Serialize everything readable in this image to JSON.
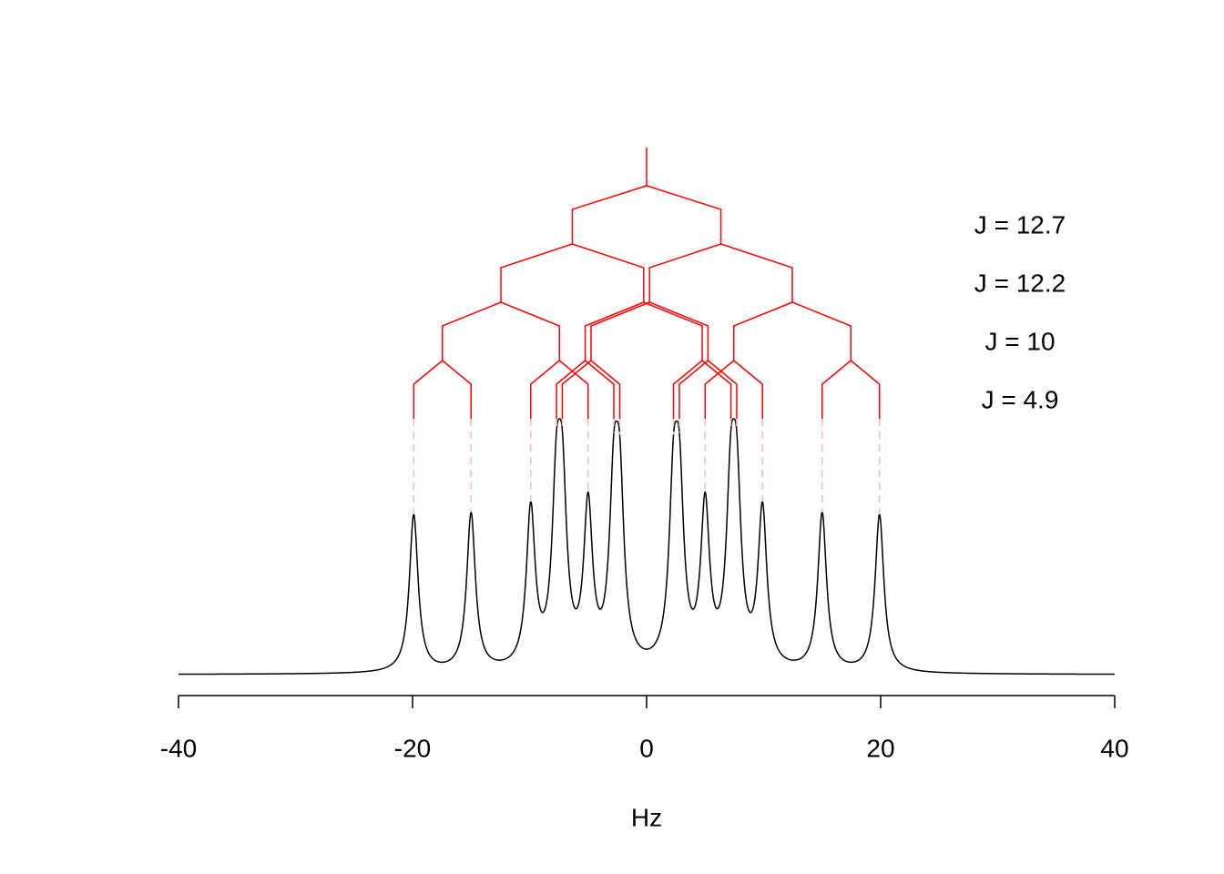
{
  "chart_data": {
    "type": "splitting-tree",
    "center": 0,
    "couplings": [
      12.7,
      12.2,
      10,
      4.9
    ],
    "coupling_labels": [
      "J = 12.7",
      "J = 12.2",
      "J = 10",
      "J = 4.9"
    ],
    "xlim": [
      -40,
      40
    ],
    "xticks": [
      -40,
      -20,
      0,
      20,
      40
    ],
    "xlabel": "Hz",
    "tree_color": "#ff0000",
    "guide_color": "#ffb6c1",
    "line_color": "#000000"
  }
}
